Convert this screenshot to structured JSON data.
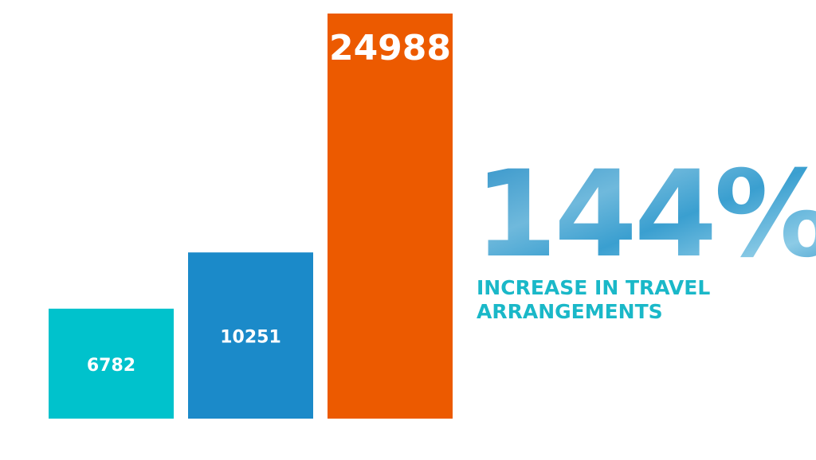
{
  "chart_data": {
    "type": "bar",
    "values": [
      6782,
      10251,
      24988
    ],
    "colors": [
      "#00c2cc",
      "#1b8ac9",
      "#ec5a00"
    ],
    "headline": "144%",
    "caption_lines": [
      "INCREASE IN TRAVEL",
      "ARRANGEMENTS"
    ]
  }
}
